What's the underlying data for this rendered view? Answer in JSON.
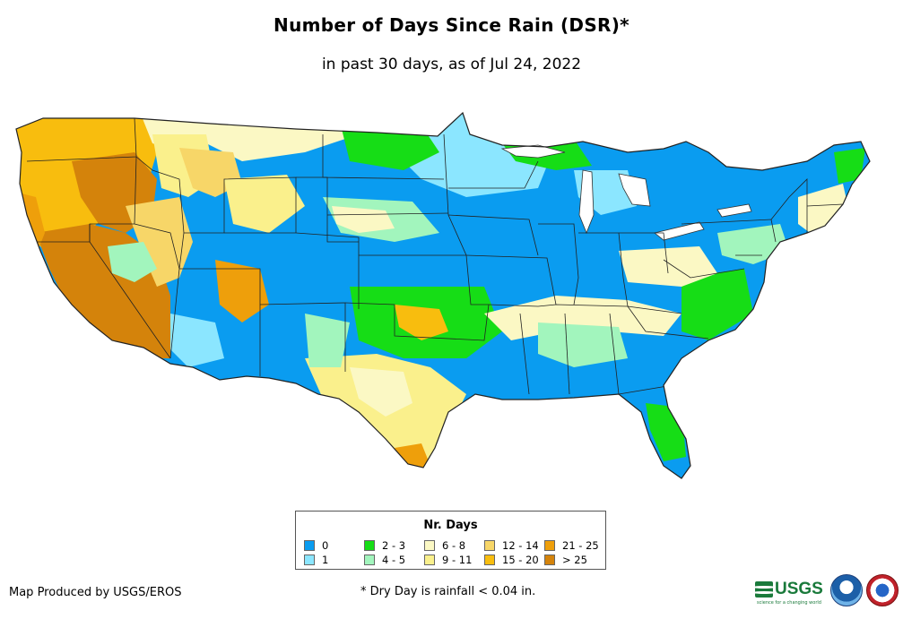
{
  "header": {
    "title": "Number of Days Since Rain (DSR)*",
    "subtitle": "in past 30 days, as of Jul 24, 2022"
  },
  "legend": {
    "title": "Nr. Days",
    "items": [
      {
        "label": "0",
        "color": "#0a9cf0"
      },
      {
        "label": "1",
        "color": "#8be6ff"
      },
      {
        "label": "2 - 3",
        "color": "#16dd16"
      },
      {
        "label": "4 - 5",
        "color": "#a2f5bd"
      },
      {
        "label": "6 - 8",
        "color": "#fbf8c4"
      },
      {
        "label": "9 - 11",
        "color": "#faf08c"
      },
      {
        "label": "12 - 14",
        "color": "#f7d668"
      },
      {
        "label": "15 - 20",
        "color": "#f8bd0e"
      },
      {
        "label": "21 - 25",
        "color": "#ee9f0b"
      },
      {
        "label": "> 25",
        "color": "#d4830b"
      }
    ]
  },
  "footer": {
    "credit": "Map Produced by USGS/EROS",
    "footnote": "* Dry Day is rainfall < 0.04 in.",
    "usgs_logo_text": "USGS",
    "usgs_tagline": "science for a changing world"
  },
  "map_regions": [
    {
      "region": "Pacific Northwest (WA/OR)",
      "category": "15 - 20"
    },
    {
      "region": "Oregon interior",
      "category": "> 25"
    },
    {
      "region": "California",
      "category": "> 25"
    },
    {
      "region": "Nevada",
      "category": "> 25"
    },
    {
      "region": "Idaho / Montana",
      "category": "6 - 8"
    },
    {
      "region": "Colorado / Kansas / Nebraska",
      "category": "0"
    },
    {
      "region": "Upper Midwest (MN/ND)",
      "category": "1"
    },
    {
      "region": "Great Lakes / Ohio Valley / Northeast",
      "category": "0"
    },
    {
      "region": "Texas",
      "category": "9 - 11"
    },
    {
      "region": "Oklahoma",
      "category": "2 - 3"
    },
    {
      "region": "Southeast",
      "category": "0"
    },
    {
      "region": "Florida",
      "category": "2 - 3"
    }
  ]
}
